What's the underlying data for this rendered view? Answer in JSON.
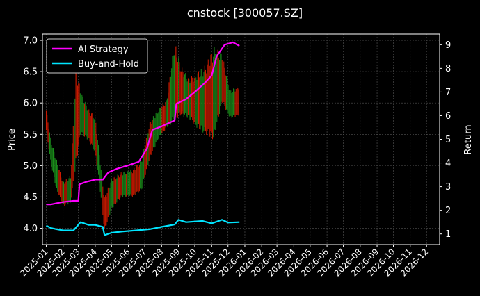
{
  "chart_data": {
    "type": "line",
    "title": "cnstock [300057.SZ]",
    "ylabel_left": "Price",
    "ylabel_right": "Return",
    "x_ticks": [
      "2025-01",
      "2025-02",
      "2025-03",
      "2025-04",
      "2025-05",
      "2025-06",
      "2025-07",
      "2025-08",
      "2025-09",
      "2025-10",
      "2025-11",
      "2025-12",
      "2026-01",
      "2026-02",
      "2026-03",
      "2026-04",
      "2026-05",
      "2026-06",
      "2026-07",
      "2026-08",
      "2026-09",
      "2026-10",
      "2026-11",
      "2026-12"
    ],
    "xlim": [
      "2024-12-25",
      "2026-12-25"
    ],
    "y_left_ticks": [
      "4.0",
      "4.5",
      "5.0",
      "5.5",
      "6.0",
      "6.5",
      "7.0"
    ],
    "ylim_left": [
      3.74,
      7.1
    ],
    "y_right_ticks": [
      "1",
      "2",
      "3",
      "4",
      "5",
      "6",
      "7",
      "8",
      "9"
    ],
    "ylim_right": [
      0.55,
      9.45
    ],
    "grid": true,
    "legend_placement": "top-left",
    "colors": {
      "ai": "#ff00ff",
      "bh": "#00e5ff",
      "candle_up": "#cc1a00",
      "candle_down": "#1a8c1a",
      "grid": "#555555",
      "axis": "#ffffff"
    },
    "series": [
      {
        "name": "AI Strategy",
        "axis": "right",
        "points": [
          [
            "2025-01-01",
            2.25
          ],
          [
            "2025-01-10",
            2.25
          ],
          [
            "2025-01-20",
            2.3
          ],
          [
            "2025-02-01",
            2.35
          ],
          [
            "2025-02-20",
            2.4
          ],
          [
            "2025-03-01",
            2.4
          ],
          [
            "2025-03-03",
            3.1
          ],
          [
            "2025-03-15",
            3.2
          ],
          [
            "2025-04-01",
            3.3
          ],
          [
            "2025-04-15",
            3.3
          ],
          [
            "2025-04-25",
            3.6
          ],
          [
            "2025-05-10",
            3.75
          ],
          [
            "2025-06-01",
            3.9
          ],
          [
            "2025-06-20",
            4.05
          ],
          [
            "2025-07-05",
            4.6
          ],
          [
            "2025-07-15",
            5.4
          ],
          [
            "2025-08-01",
            5.55
          ],
          [
            "2025-08-25",
            5.8
          ],
          [
            "2025-08-28",
            6.5
          ],
          [
            "2025-09-15",
            6.7
          ],
          [
            "2025-10-01",
            7.0
          ],
          [
            "2025-10-20",
            7.4
          ],
          [
            "2025-11-01",
            7.7
          ],
          [
            "2025-11-10",
            8.5
          ],
          [
            "2025-11-25",
            9.0
          ],
          [
            "2025-12-10",
            9.1
          ],
          [
            "2025-12-22",
            8.95
          ]
        ]
      },
      {
        "name": "Buy-and-Hold",
        "axis": "right",
        "points": [
          [
            "2025-01-01",
            1.35
          ],
          [
            "2025-01-10",
            1.25
          ],
          [
            "2025-01-20",
            1.2
          ],
          [
            "2025-02-01",
            1.15
          ],
          [
            "2025-02-20",
            1.15
          ],
          [
            "2025-03-05",
            1.5
          ],
          [
            "2025-03-20",
            1.38
          ],
          [
            "2025-04-01",
            1.38
          ],
          [
            "2025-04-15",
            1.3
          ],
          [
            "2025-04-18",
            0.95
          ],
          [
            "2025-05-01",
            1.05
          ],
          [
            "2025-05-20",
            1.1
          ],
          [
            "2025-06-15",
            1.15
          ],
          [
            "2025-07-10",
            1.2
          ],
          [
            "2025-08-01",
            1.3
          ],
          [
            "2025-08-25",
            1.4
          ],
          [
            "2025-09-01",
            1.6
          ],
          [
            "2025-09-15",
            1.5
          ],
          [
            "2025-10-15",
            1.55
          ],
          [
            "2025-11-01",
            1.45
          ],
          [
            "2025-11-20",
            1.6
          ],
          [
            "2025-12-01",
            1.48
          ],
          [
            "2025-12-22",
            1.5
          ]
        ]
      }
    ],
    "price_band": {
      "axis": "left",
      "points": [
        [
          "2025-01-01",
          5.55,
          5.9
        ],
        [
          "2025-01-10",
          5.0,
          5.4
        ],
        [
          "2025-01-20",
          4.6,
          5.1
        ],
        [
          "2025-02-01",
          4.35,
          4.75
        ],
        [
          "2025-02-15",
          4.4,
          4.85
        ],
        [
          "2025-02-25",
          5.0,
          6.6
        ],
        [
          "2025-03-05",
          5.5,
          6.2
        ],
        [
          "2025-03-20",
          5.4,
          5.9
        ],
        [
          "2025-04-01",
          5.2,
          5.8
        ],
        [
          "2025-04-10",
          4.6,
          5.1
        ],
        [
          "2025-04-18",
          3.95,
          4.5
        ],
        [
          "2025-05-01",
          4.3,
          4.8
        ],
        [
          "2025-05-20",
          4.5,
          4.9
        ],
        [
          "2025-06-10",
          4.5,
          4.95
        ],
        [
          "2025-06-25",
          4.6,
          5.1
        ],
        [
          "2025-07-10",
          5.1,
          5.7
        ],
        [
          "2025-07-25",
          5.4,
          5.9
        ],
        [
          "2025-08-10",
          5.6,
          6.05
        ],
        [
          "2025-08-25",
          5.7,
          7.0
        ],
        [
          "2025-09-05",
          5.8,
          6.6
        ],
        [
          "2025-09-20",
          5.75,
          6.4
        ],
        [
          "2025-10-05",
          5.6,
          6.5
        ],
        [
          "2025-10-20",
          5.5,
          6.6
        ],
        [
          "2025-11-05",
          5.4,
          6.9
        ],
        [
          "2025-11-20",
          6.0,
          6.8
        ],
        [
          "2025-12-05",
          5.75,
          6.2
        ],
        [
          "2025-12-22",
          5.8,
          6.3
        ]
      ]
    }
  },
  "legend": [
    {
      "label": "AI Strategy",
      "color": "#ff00ff"
    },
    {
      "label": "Buy-and-Hold",
      "color": "#00e5ff"
    }
  ]
}
